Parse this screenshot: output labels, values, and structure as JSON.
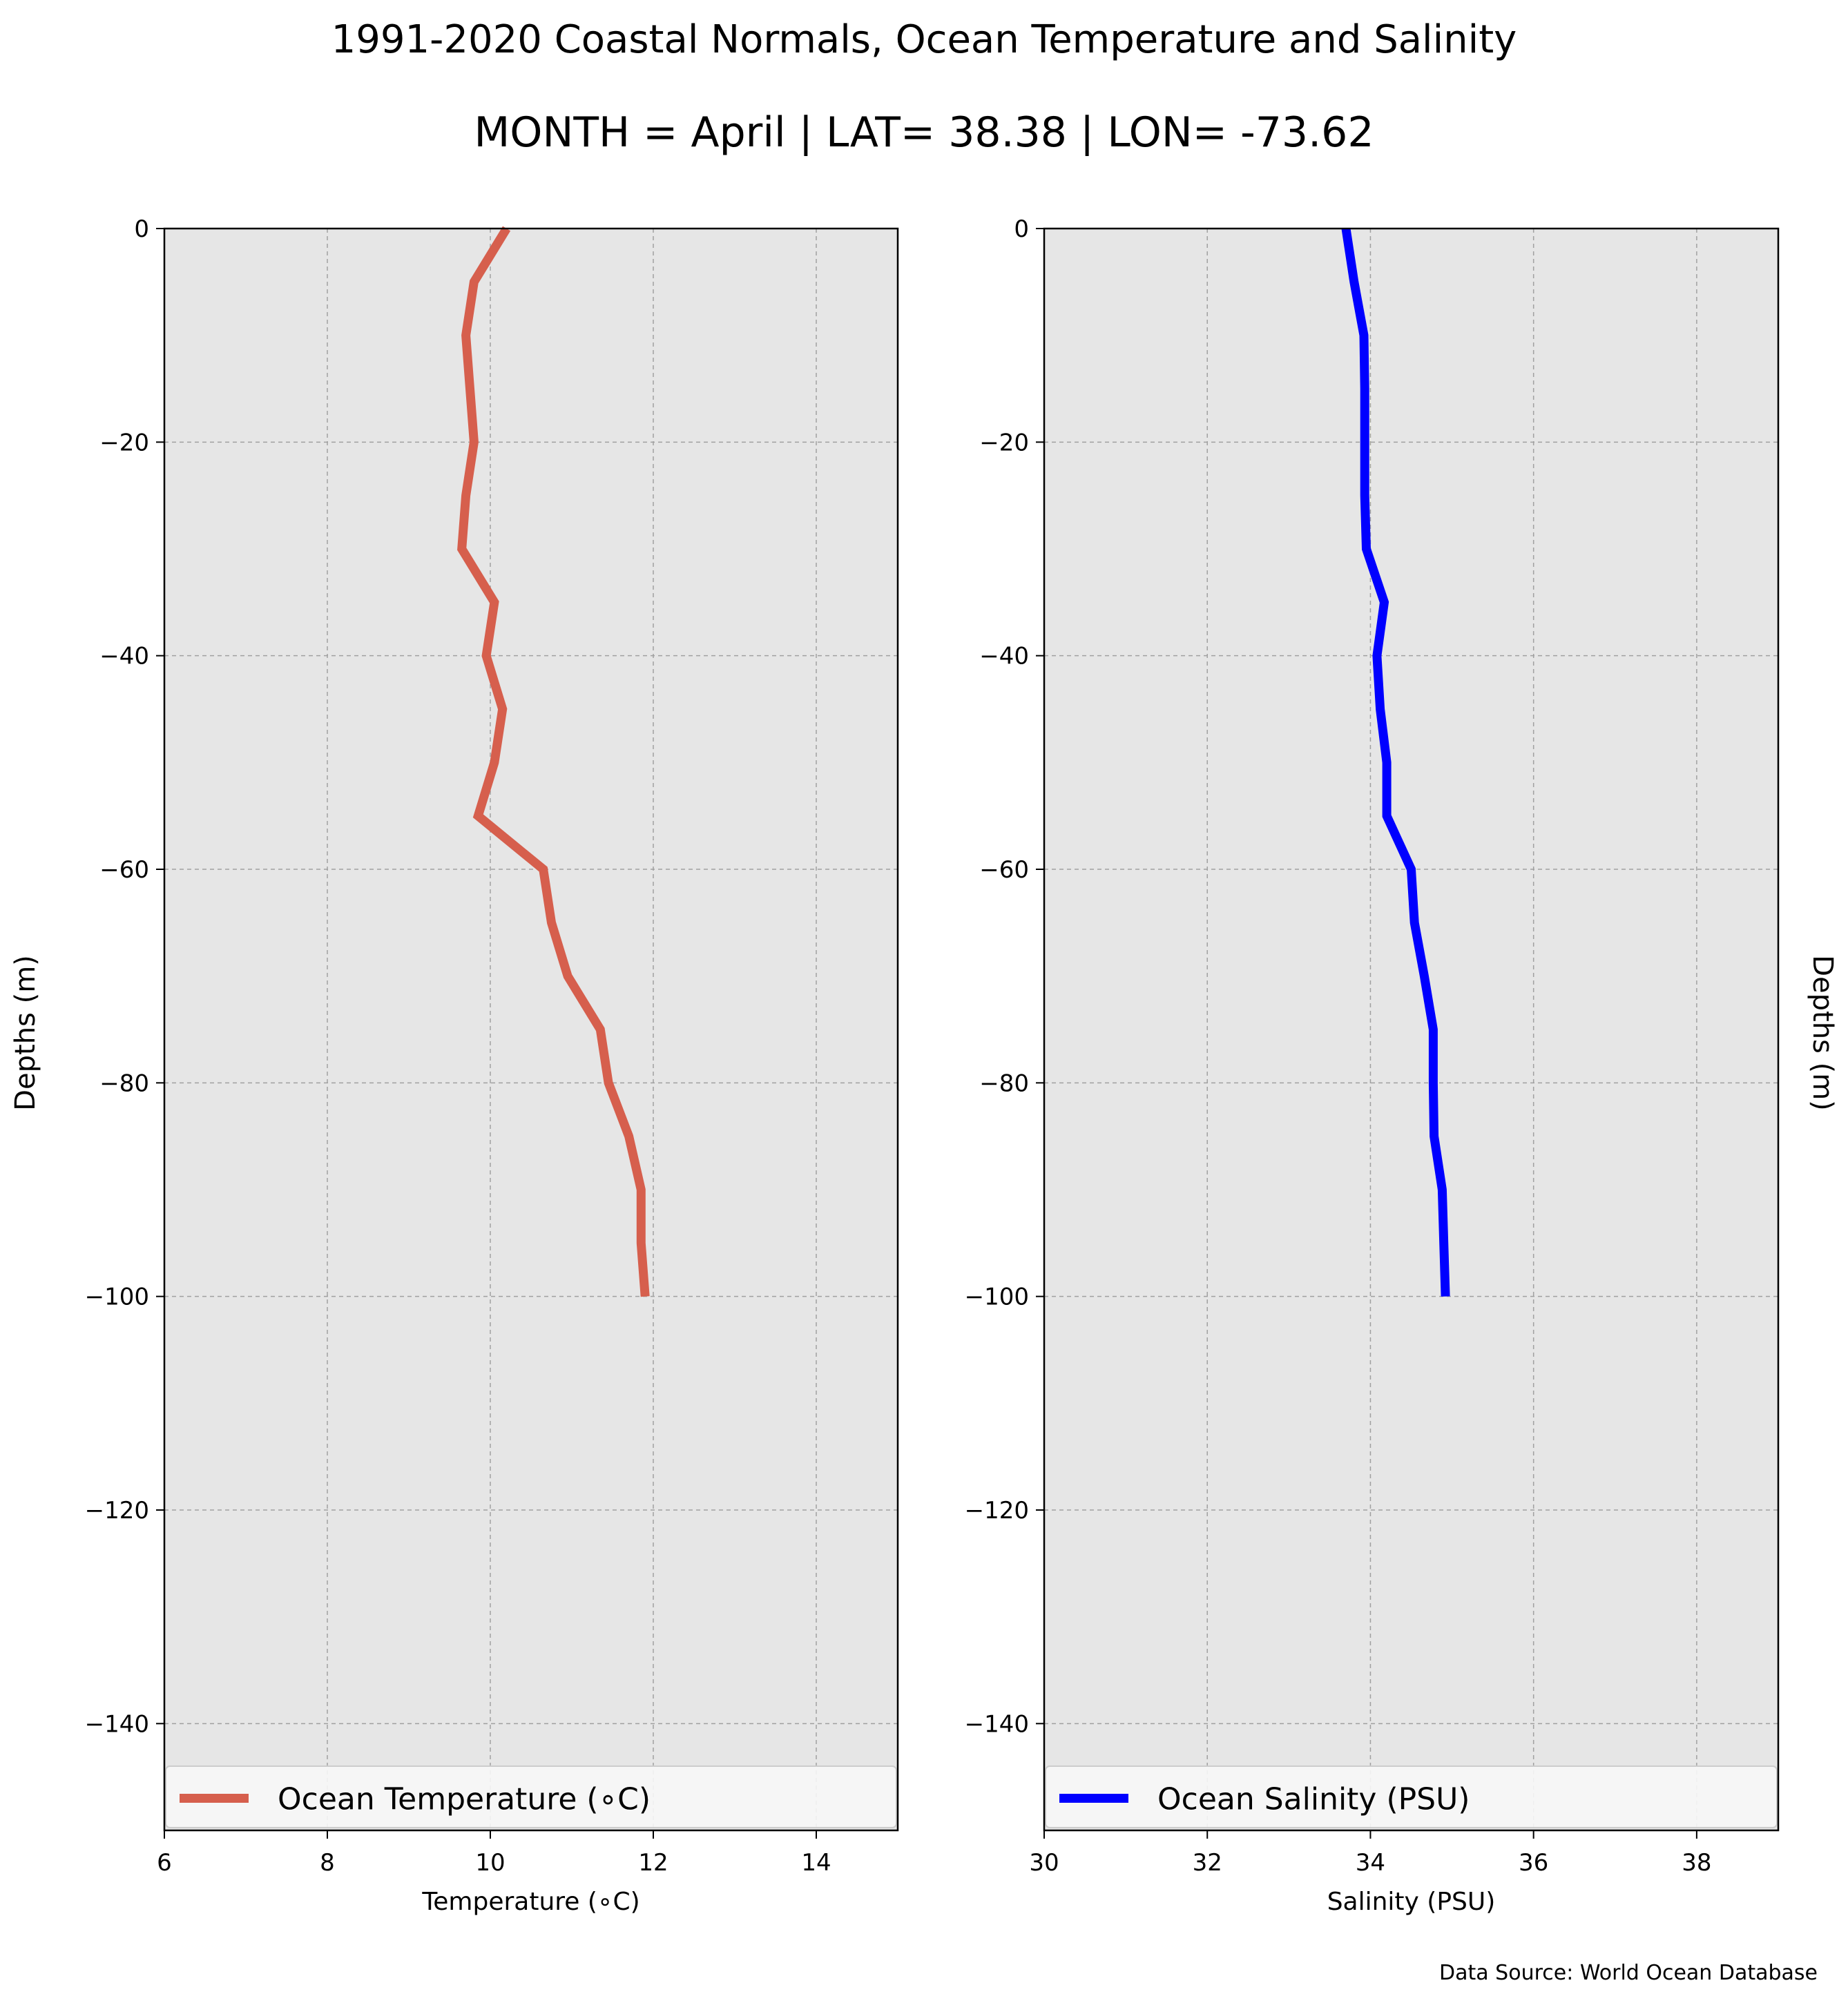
{
  "title": "1991-2020 Coastal Normals, Ocean Temperature and Salinity",
  "subtitle": "MONTH = April | LAT= 38.38 | LON= -73.62",
  "source_note": "Data Source: World Ocean Database",
  "colors": {
    "plot_background": "#e6e6e6",
    "grid": "#a0a0a0",
    "temperature_line": "#d65f4d",
    "salinity_line": "#0000ff"
  },
  "chart_data": [
    {
      "type": "line",
      "xlabel": "Temperature (∘C)",
      "ylabel": "Depths (m)",
      "ylabel_side": "left",
      "xlim": [
        6,
        15
      ],
      "ylim": [
        -150,
        0
      ],
      "xticks": [
        6,
        8,
        10,
        12,
        14
      ],
      "yticks": [
        0,
        -20,
        -40,
        -60,
        -80,
        -100,
        -120,
        -140
      ],
      "ytick_labels": [
        "0",
        "−20",
        "−40",
        "−60",
        "−80",
        "−100",
        "−120",
        "−140"
      ],
      "grid": true,
      "legend_position": "bottom",
      "series": [
        {
          "name": "Ocean Temperature (∘C)",
          "color": "#d65f4d",
          "x": [
            10.2,
            9.8,
            9.7,
            9.75,
            9.8,
            9.7,
            9.65,
            10.05,
            9.95,
            10.15,
            10.05,
            9.85,
            10.65,
            10.75,
            10.95,
            11.35,
            11.45,
            11.7,
            11.85,
            11.85,
            11.9
          ],
          "y": [
            0,
            -5,
            -10,
            -15,
            -20,
            -25,
            -30,
            -35,
            -40,
            -45,
            -50,
            -55,
            -60,
            -65,
            -70,
            -75,
            -80,
            -85,
            -90,
            -95,
            -100
          ]
        }
      ]
    },
    {
      "type": "line",
      "xlabel": "Salinity (PSU)",
      "ylabel": "Depths (m)",
      "ylabel_side": "right",
      "xlim": [
        30,
        39
      ],
      "ylim": [
        -150,
        0
      ],
      "xticks": [
        30,
        32,
        34,
        36,
        38
      ],
      "yticks": [
        0,
        -20,
        -40,
        -60,
        -80,
        -100,
        -120,
        -140
      ],
      "ytick_labels": [
        "0",
        "−20",
        "−40",
        "−60",
        "−80",
        "−100",
        "−120",
        "−140"
      ],
      "grid": true,
      "legend_position": "bottom",
      "series": [
        {
          "name": "Ocean Salinity (PSU)",
          "color": "#0000ff",
          "x": [
            33.7,
            33.8,
            33.92,
            33.93,
            33.93,
            33.93,
            33.95,
            34.17,
            34.08,
            34.12,
            34.2,
            34.2,
            34.5,
            34.54,
            34.66,
            34.77,
            34.77,
            34.78,
            34.88,
            34.9,
            34.92
          ],
          "y": [
            0,
            -5,
            -10,
            -15,
            -20,
            -25,
            -30,
            -35,
            -40,
            -45,
            -50,
            -55,
            -60,
            -65,
            -70,
            -75,
            -80,
            -85,
            -90,
            -95,
            -100
          ]
        }
      ]
    }
  ]
}
